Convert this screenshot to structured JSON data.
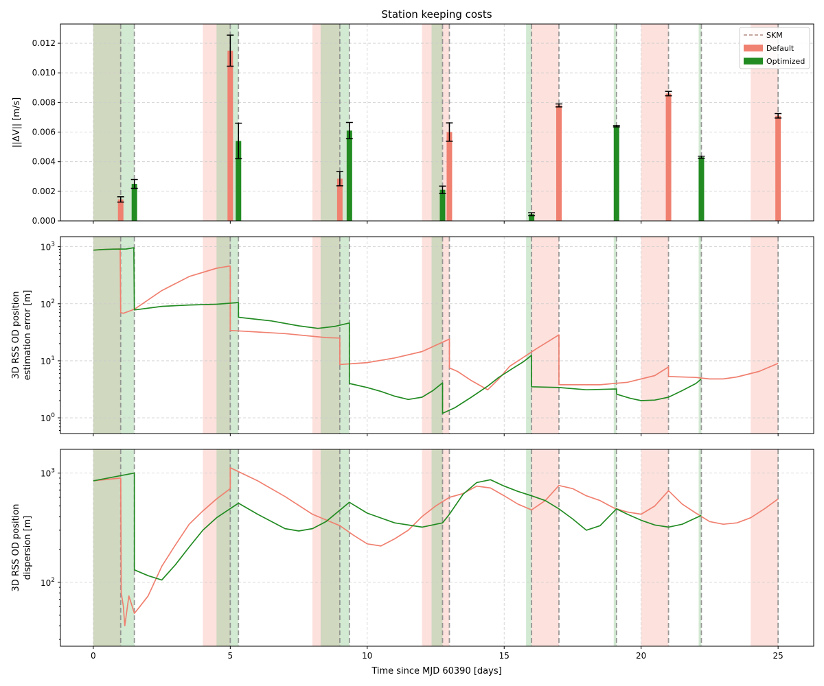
{
  "figure": {
    "title": "Station keeping costs",
    "xlabel": "Time since MJD 60390 [days]",
    "xticks": [
      "0",
      "5",
      "10",
      "15",
      "20",
      "25"
    ]
  },
  "legend": {
    "skm": "SKM",
    "default": "Default",
    "optimized": "Optimized"
  },
  "colors": {
    "default": "#f08070",
    "optimized": "#228b22",
    "default_shade": "#f9b8ad",
    "optimized_shade": "#9bcf9b",
    "skm_line": "#888888",
    "error_bar": "#000000",
    "grid": "#cccccc"
  },
  "panels": {
    "cost": {
      "ylabel": "||ΔV|| [m/s]",
      "yticks": [
        "0.000",
        "0.002",
        "0.004",
        "0.006",
        "0.008",
        "0.010",
        "0.012"
      ]
    },
    "error": {
      "ylabel_1": "3D RSS OD position",
      "ylabel_2": "estimation error [m]",
      "yticks": [
        "10^0",
        "10^1",
        "10^2",
        "10^3"
      ]
    },
    "dispersion": {
      "ylabel_1": "3D RSS OD position",
      "ylabel_2": "dispersion [m]",
      "yticks": [
        "10^2",
        "10^3"
      ]
    }
  },
  "chart_data": [
    {
      "type": "bar",
      "title": "Station keeping costs",
      "ylabel": "||ΔV|| [m/s]",
      "xlim": [
        -1.2,
        26.3
      ],
      "ylim": [
        0,
        0.0133
      ],
      "skm_default_times": [
        1.0,
        5.0,
        9.0,
        13.0,
        17.0,
        21.0,
        25.0
      ],
      "skm_optimized_times": [
        1.5,
        5.3,
        9.35,
        12.75,
        16.0,
        19.1,
        22.2
      ],
      "shade_default": [
        [
          0,
          1.0
        ],
        [
          4.0,
          5.0
        ],
        [
          8.0,
          9.0
        ],
        [
          12.0,
          13.0
        ],
        [
          16.0,
          17.0
        ],
        [
          20.0,
          21.0
        ],
        [
          24.0,
          25.0
        ]
      ],
      "shade_optimized": [
        [
          0,
          1.5
        ],
        [
          4.5,
          5.3
        ],
        [
          8.3,
          9.35
        ],
        [
          12.35,
          12.75
        ],
        [
          15.8,
          16.0
        ],
        [
          19.0,
          19.1
        ],
        [
          22.1,
          22.2
        ]
      ],
      "series": [
        {
          "name": "Default",
          "x": [
            1.0,
            5.0,
            9.0,
            13.0,
            17.0,
            21.0,
            25.0
          ],
          "values": [
            0.00145,
            0.0115,
            0.00285,
            0.006,
            0.0078,
            0.0086,
            0.0071
          ],
          "errors": [
            0.00018,
            0.00105,
            0.00048,
            0.00062,
            0.0001,
            0.00015,
            0.00015
          ]
        },
        {
          "name": "Optimized",
          "x": [
            1.5,
            5.3,
            9.35,
            12.75,
            16.0,
            19.1,
            22.2
          ],
          "values": [
            0.0025,
            0.0054,
            0.0061,
            0.0021,
            0.00045,
            0.0064,
            0.0043
          ],
          "errors": [
            0.0003,
            0.0012,
            0.00055,
            0.00025,
            0.0001,
            5e-05,
            7e-05
          ]
        }
      ]
    },
    {
      "type": "line",
      "ylabel": "3D RSS OD position estimation error [m]",
      "yscale": "log",
      "ylim": [
        0.53,
        1500
      ],
      "series": [
        {
          "name": "Default",
          "points": [
            [
              0,
              870
            ],
            [
              0.3,
              890
            ],
            [
              0.7,
              905
            ],
            [
              0.98,
              910
            ],
            [
              1.0,
              70
            ],
            [
              1.1,
              68
            ],
            [
              1.5,
              80
            ],
            [
              2.5,
              170
            ],
            [
              3.5,
              300
            ],
            [
              4.5,
              420
            ],
            [
              5.0,
              460
            ],
            [
              5.0,
              34
            ],
            [
              7.0,
              30
            ],
            [
              8.5,
              25.5
            ],
            [
              9.0,
              25
            ],
            [
              9.0,
              8.6
            ],
            [
              10.0,
              9.3
            ],
            [
              11.0,
              11.2
            ],
            [
              12.0,
              14.5
            ],
            [
              13.0,
              24
            ],
            [
              13.0,
              7.5
            ],
            [
              13.3,
              6.5
            ],
            [
              13.8,
              4.5
            ],
            [
              14.2,
              3.5
            ],
            [
              14.4,
              3.1
            ],
            [
              14.8,
              4.8
            ],
            [
              15.2,
              8
            ],
            [
              15.7,
              11.5
            ],
            [
              16.2,
              16.5
            ],
            [
              17.0,
              28.5
            ],
            [
              17.0,
              3.8
            ],
            [
              18.5,
              3.8
            ],
            [
              19.0,
              4.0
            ],
            [
              19.5,
              4.2
            ],
            [
              20.5,
              5.5
            ],
            [
              21.0,
              7.8
            ],
            [
              21.0,
              5.3
            ],
            [
              22.0,
              5.1
            ],
            [
              22.5,
              4.8
            ],
            [
              23.0,
              4.8
            ],
            [
              23.5,
              5.2
            ],
            [
              24.3,
              6.5
            ],
            [
              25.0,
              9.0
            ]
          ]
        },
        {
          "name": "Optimized",
          "points": [
            [
              0,
              870
            ],
            [
              0.3,
              890
            ],
            [
              0.7,
              905
            ],
            [
              1.2,
              910
            ],
            [
              1.48,
              960
            ],
            [
              1.5,
              78
            ],
            [
              2.5,
              90
            ],
            [
              3.5,
              95
            ],
            [
              4.5,
              98
            ],
            [
              5.3,
              105
            ],
            [
              5.3,
              58
            ],
            [
              6.5,
              50
            ],
            [
              7.5,
              41
            ],
            [
              8.2,
              37
            ],
            [
              8.8,
              40
            ],
            [
              9.35,
              46
            ],
            [
              9.35,
              4.0
            ],
            [
              10.0,
              3.4
            ],
            [
              10.5,
              2.9
            ],
            [
              11.0,
              2.4
            ],
            [
              11.5,
              2.1
            ],
            [
              12.0,
              2.3
            ],
            [
              12.4,
              3.0
            ],
            [
              12.75,
              4.1
            ],
            [
              12.75,
              1.2
            ],
            [
              13.2,
              1.5
            ],
            [
              13.8,
              2.3
            ],
            [
              14.4,
              3.6
            ],
            [
              14.8,
              5.1
            ],
            [
              15.3,
              7.3
            ],
            [
              15.7,
              9.6
            ],
            [
              16.0,
              12.5
            ],
            [
              16.0,
              3.5
            ],
            [
              17.0,
              3.4
            ],
            [
              18.0,
              3.1
            ],
            [
              19.0,
              3.2
            ],
            [
              19.1,
              3.2
            ],
            [
              19.1,
              2.6
            ],
            [
              19.6,
              2.2
            ],
            [
              20.0,
              2.0
            ],
            [
              20.5,
              2.05
            ],
            [
              21.0,
              2.3
            ],
            [
              21.5,
              3.0
            ],
            [
              22.0,
              4.0
            ],
            [
              22.2,
              4.8
            ]
          ]
        }
      ]
    },
    {
      "type": "line",
      "ylabel": "3D RSS OD position dispersion [m]",
      "yscale": "log",
      "ylim": [
        26,
        1650
      ],
      "series": [
        {
          "name": "Default",
          "points": [
            [
              0,
              850
            ],
            [
              1.0,
              900
            ],
            [
              1.02,
              80
            ],
            [
              1.1,
              60
            ],
            [
              1.15,
              40
            ],
            [
              1.3,
              75
            ],
            [
              1.5,
              52
            ],
            [
              1.7,
              60
            ],
            [
              2.0,
              75
            ],
            [
              2.5,
              140
            ],
            [
              3.0,
              220
            ],
            [
              3.5,
              340
            ],
            [
              4.0,
              450
            ],
            [
              4.5,
              580
            ],
            [
              5.0,
              720
            ],
            [
              5.0,
              1120
            ],
            [
              6.0,
              850
            ],
            [
              7.0,
              610
            ],
            [
              8.0,
              420
            ],
            [
              9.0,
              330
            ],
            [
              9.5,
              270
            ],
            [
              10.0,
              225
            ],
            [
              10.5,
              215
            ],
            [
              11.0,
              250
            ],
            [
              11.5,
              300
            ],
            [
              12.0,
              400
            ],
            [
              12.5,
              500
            ],
            [
              13.0,
              600
            ],
            [
              13.5,
              650
            ],
            [
              14.0,
              760
            ],
            [
              14.5,
              730
            ],
            [
              15.0,
              620
            ],
            [
              15.5,
              520
            ],
            [
              16.0,
              460
            ],
            [
              16.5,
              560
            ],
            [
              17.0,
              770
            ],
            [
              17.5,
              720
            ],
            [
              18.0,
              620
            ],
            [
              18.5,
              560
            ],
            [
              19.0,
              480
            ],
            [
              19.5,
              440
            ],
            [
              20.0,
              420
            ],
            [
              20.5,
              500
            ],
            [
              21.0,
              690
            ],
            [
              21.5,
              520
            ],
            [
              22.0,
              430
            ],
            [
              22.5,
              360
            ],
            [
              23.0,
              340
            ],
            [
              23.5,
              350
            ],
            [
              24.0,
              390
            ],
            [
              24.5,
              470
            ],
            [
              25.0,
              580
            ]
          ]
        },
        {
          "name": "Optimized",
          "points": [
            [
              0,
              850
            ],
            [
              1.5,
              1000
            ],
            [
              1.5,
              130
            ],
            [
              2.0,
              115
            ],
            [
              2.5,
              105
            ],
            [
              3.0,
              145
            ],
            [
              3.5,
              210
            ],
            [
              4.0,
              300
            ],
            [
              4.5,
              390
            ],
            [
              5.3,
              530
            ],
            [
              6.0,
              420
            ],
            [
              7.0,
              310
            ],
            [
              7.5,
              295
            ],
            [
              8.0,
              310
            ],
            [
              8.5,
              360
            ],
            [
              9.35,
              540
            ],
            [
              10.0,
              430
            ],
            [
              11.0,
              350
            ],
            [
              12.0,
              320
            ],
            [
              12.75,
              350
            ],
            [
              13.0,
              420
            ],
            [
              13.5,
              640
            ],
            [
              14.0,
              820
            ],
            [
              14.5,
              870
            ],
            [
              15.0,
              760
            ],
            [
              15.5,
              680
            ],
            [
              16.0,
              620
            ],
            [
              16.5,
              560
            ],
            [
              17.0,
              470
            ],
            [
              17.5,
              380
            ],
            [
              18.0,
              300
            ],
            [
              18.5,
              330
            ],
            [
              19.1,
              470
            ],
            [
              19.5,
              420
            ],
            [
              20.0,
              370
            ],
            [
              20.5,
              335
            ],
            [
              21.0,
              320
            ],
            [
              21.5,
              340
            ],
            [
              22.2,
              410
            ]
          ]
        }
      ]
    }
  ]
}
